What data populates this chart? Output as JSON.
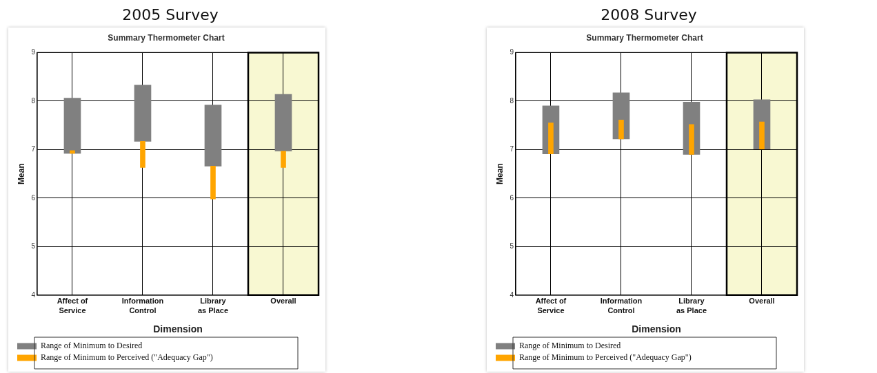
{
  "chart_data": [
    {
      "type": "bar",
      "title": "2005 Survey",
      "subtitle": "Summary Thermometer Chart",
      "xlabel": "Dimension",
      "ylabel": "Mean",
      "categories": [
        "Affect of Service",
        "Information Control",
        "Library as Place",
        "Overall"
      ],
      "series": [
        {
          "name": "Range of Minimum to Desired",
          "color": "#808080",
          "base": [
            6.92,
            7.17,
            6.66,
            6.97
          ],
          "values": [
            1.14,
            1.16,
            1.26,
            1.17
          ]
        },
        {
          "name": "Range of Minimum to Perceived (\"Adequacy Gap\")",
          "color": "#ffa500",
          "base": [
            6.92,
            7.17,
            6.66,
            6.97
          ],
          "values": [
            0.06,
            -0.54,
            -0.68,
            -0.34
          ]
        }
      ],
      "ylim": [
        4,
        9
      ],
      "yticks": [
        4,
        5,
        6,
        7,
        8,
        9
      ],
      "grid": true,
      "legend": "bottom",
      "bands": [
        {
          "axis": "x",
          "from": "Overall",
          "to": "Overall",
          "color": "#f8f8d2"
        }
      ]
    },
    {
      "type": "bar",
      "title": "2008 Survey",
      "subtitle": "Summary Thermometer Chart",
      "xlabel": "Dimension",
      "ylabel": "Mean",
      "categories": [
        "Affect of Service",
        "Information Control",
        "Library as Place",
        "Overall"
      ],
      "series": [
        {
          "name": "Range of Minimum to Desired",
          "color": "#808080",
          "base": [
            6.91,
            7.22,
            6.9,
            7.01
          ],
          "values": [
            0.99,
            0.95,
            1.08,
            1.02
          ]
        },
        {
          "name": "Range of Minimum to Perceived (\"Adequacy Gap\")",
          "color": "#ffa500",
          "base": [
            6.91,
            7.22,
            6.9,
            7.01
          ],
          "values": [
            0.64,
            0.39,
            0.62,
            0.56
          ]
        }
      ],
      "ylim": [
        4,
        9
      ],
      "yticks": [
        4,
        5,
        6,
        7,
        8,
        9
      ],
      "grid": true,
      "legend": "bottom",
      "bands": [
        {
          "axis": "x",
          "from": "Overall",
          "to": "Overall",
          "color": "#f8f8d2"
        }
      ]
    }
  ]
}
